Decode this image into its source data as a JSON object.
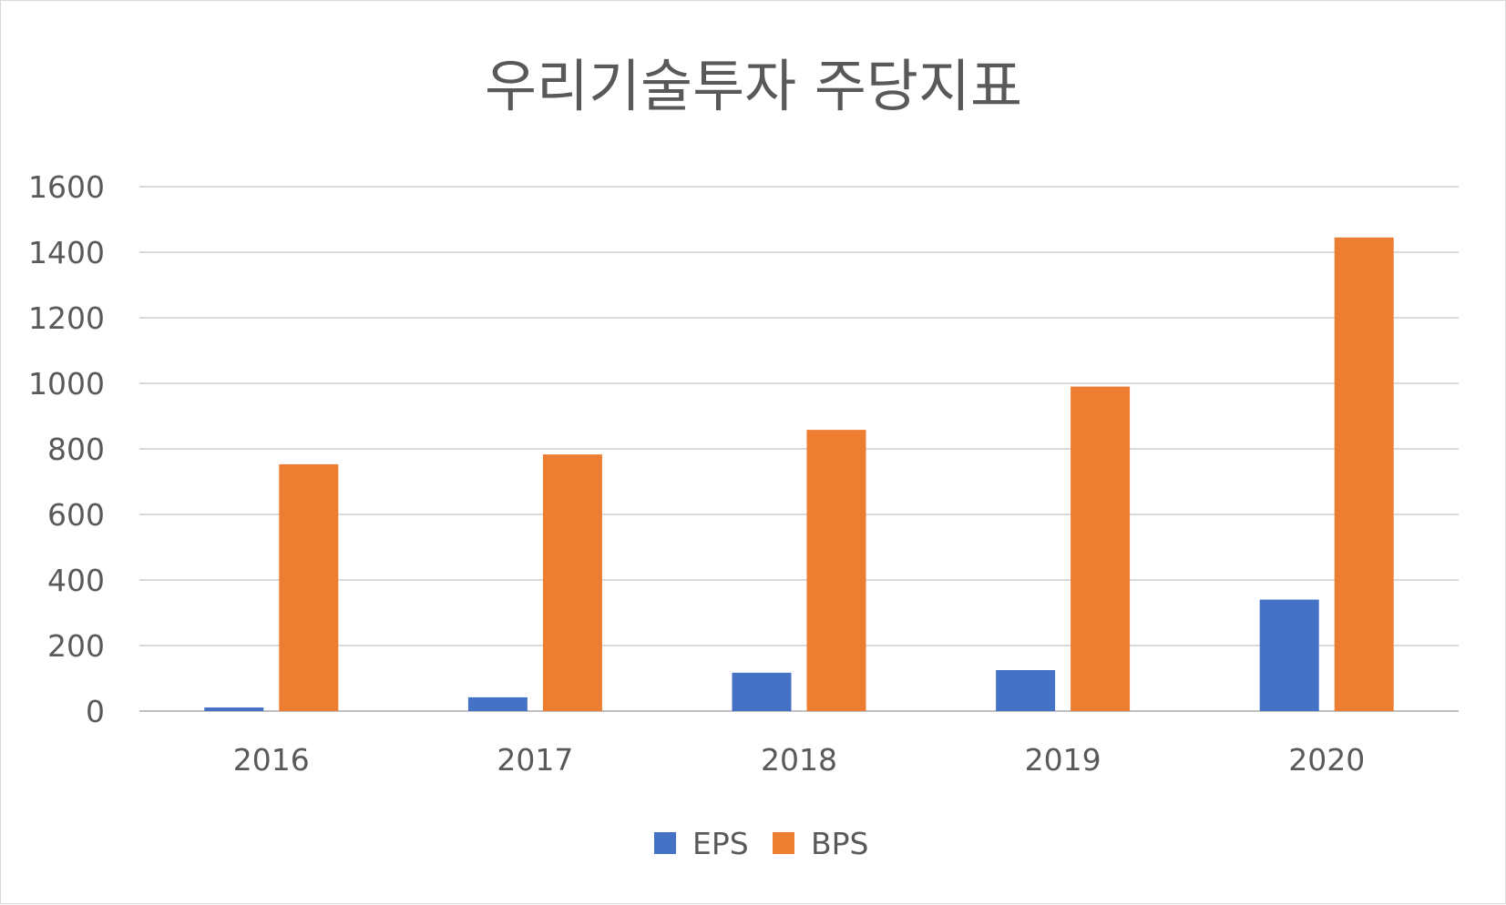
{
  "chart_data": {
    "type": "bar",
    "title": "우리기술투자 주당지표",
    "xlabel": "",
    "ylabel": "",
    "categories": [
      "2016",
      "2017",
      "2018",
      "2019",
      "2020"
    ],
    "series": [
      {
        "name": "EPS",
        "color": "#4472c4",
        "values": [
          11,
          42,
          117,
          125,
          340
        ]
      },
      {
        "name": "BPS",
        "color": "#ed7d31",
        "values": [
          753,
          783,
          858,
          990,
          1445
        ]
      }
    ],
    "ylim": [
      0,
      1600
    ],
    "yticks": [
      "0",
      "200",
      "400",
      "600",
      "800",
      "1000",
      "1200",
      "1400",
      "1600"
    ],
    "grid": true,
    "legend_position": "bottom"
  }
}
